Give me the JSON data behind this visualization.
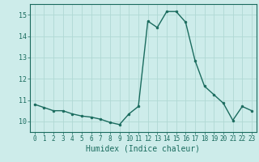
{
  "x": [
    0,
    1,
    2,
    3,
    4,
    5,
    6,
    7,
    8,
    9,
    10,
    11,
    12,
    13,
    14,
    15,
    16,
    17,
    18,
    19,
    20,
    21,
    22,
    23
  ],
  "y": [
    10.8,
    10.65,
    10.5,
    10.5,
    10.35,
    10.25,
    10.2,
    10.1,
    9.95,
    9.85,
    10.35,
    10.7,
    14.7,
    14.4,
    15.15,
    15.15,
    14.65,
    12.85,
    11.65,
    11.25,
    10.85,
    10.05,
    10.7,
    10.5
  ],
  "line_color": "#1a6b5e",
  "marker_color": "#1a6b5e",
  "bg_color": "#cdecea",
  "grid_color": "#b0d8d4",
  "axis_color": "#1a6b5e",
  "xlabel": "Humidex (Indice chaleur)",
  "ylim": [
    9.5,
    15.5
  ],
  "xlim": [
    -0.5,
    23.5
  ],
  "yticks": [
    10,
    11,
    12,
    13,
    14,
    15
  ],
  "xticks": [
    0,
    1,
    2,
    3,
    4,
    5,
    6,
    7,
    8,
    9,
    10,
    11,
    12,
    13,
    14,
    15,
    16,
    17,
    18,
    19,
    20,
    21,
    22,
    23
  ],
  "tick_fontsize": 5.5,
  "xlabel_fontsize": 7.0,
  "linewidth": 1.0,
  "markersize": 2.0
}
